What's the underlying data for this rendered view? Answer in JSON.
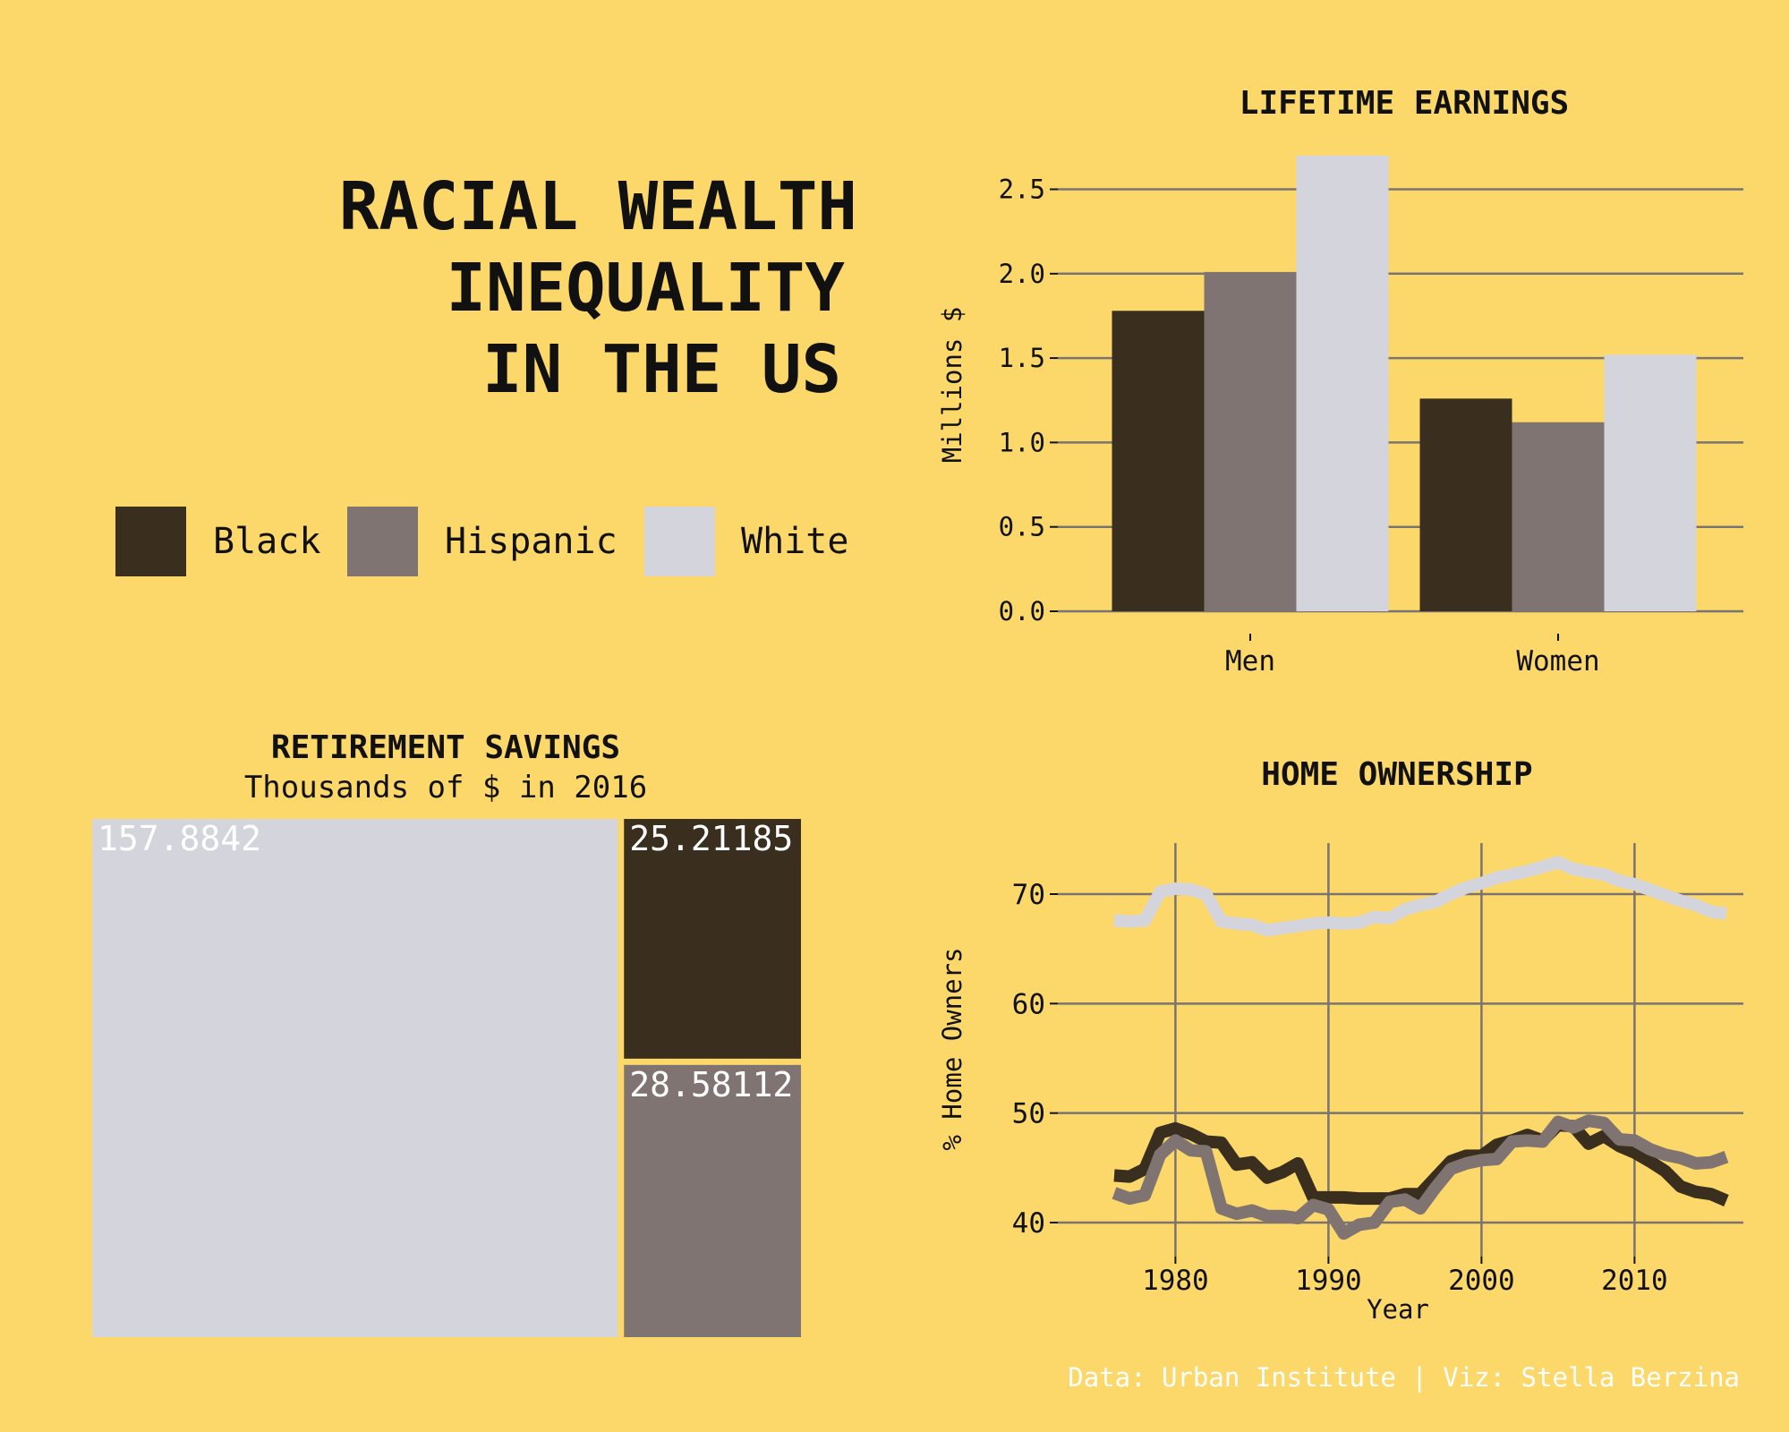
{
  "title_lines": [
    "RACIAL WEALTH",
    "INEQUALITY",
    "IN THE US"
  ],
  "colors": {
    "background": "#FCD86B",
    "Black": "#3A2F1F",
    "Hispanic": "#807472",
    "White": "#D4D4DC",
    "grid": "#7a7370"
  },
  "legend": [
    {
      "label": "Black",
      "color": "#3A2F1F"
    },
    {
      "label": "Hispanic",
      "color": "#807472"
    },
    {
      "label": "White",
      "color": "#D4D4DC"
    }
  ],
  "caption": "Data: Urban Institute | Viz: Stella Berzina",
  "chart_data": [
    {
      "type": "bar",
      "title": "LIFETIME EARNINGS",
      "ylabel": "Millions $",
      "xlabel": "",
      "categories": [
        "Men",
        "Women"
      ],
      "series": [
        {
          "name": "Black",
          "values": [
            1.78,
            1.26
          ]
        },
        {
          "name": "Hispanic",
          "values": [
            2.01,
            1.12
          ]
        },
        {
          "name": "White",
          "values": [
            2.7,
            1.52
          ]
        }
      ],
      "ylim": [
        0,
        2.72
      ],
      "yticks": [
        "0.0",
        "0.5",
        "1.0",
        "1.5",
        "2.0",
        "2.5"
      ],
      "ytick_values": [
        0,
        0.5,
        1.0,
        1.5,
        2.0,
        2.5
      ],
      "grid": true
    },
    {
      "type": "treemap",
      "title": "RETIREMENT SAVINGS",
      "subtitle": "Thousands of $ in 2016",
      "items": [
        {
          "name": "White",
          "value": 157.8842,
          "label": "157.8842"
        },
        {
          "name": "Black",
          "value": 25.21185,
          "label": "25.21185"
        },
        {
          "name": "Hispanic",
          "value": 28.58112,
          "label": "28.58112"
        }
      ]
    },
    {
      "type": "line",
      "title": "HOME OWNERSHIP",
      "ylabel": "% Home Owners",
      "xlabel": "Year",
      "xticks": [
        "1980",
        "1990",
        "2000",
        "2010"
      ],
      "xtick_values": [
        1980,
        1990,
        2000,
        2010
      ],
      "yticks": [
        "40",
        "50",
        "60",
        "70"
      ],
      "ytick_values": [
        40,
        50,
        60,
        70
      ],
      "xlim": [
        1976,
        2016
      ],
      "ylim": [
        38,
        74
      ],
      "x": [
        1976,
        1977,
        1978,
        1979,
        1980,
        1981,
        1982,
        1983,
        1984,
        1985,
        1986,
        1987,
        1988,
        1989,
        1990,
        1991,
        1992,
        1993,
        1994,
        1995,
        1996,
        1997,
        1998,
        1999,
        2000,
        2001,
        2002,
        2003,
        2004,
        2005,
        2006,
        2007,
        2008,
        2009,
        2010,
        2011,
        2012,
        2013,
        2014,
        2015,
        2016
      ],
      "series": [
        {
          "name": "White",
          "values": [
            67.6,
            67.5,
            67.6,
            70.2,
            70.5,
            70.4,
            70.0,
            67.5,
            67.3,
            67.2,
            66.7,
            66.9,
            67.1,
            67.3,
            67.4,
            67.3,
            67.4,
            67.9,
            67.8,
            68.6,
            69.0,
            69.3,
            70.0,
            70.6,
            71.0,
            71.5,
            71.8,
            72.1,
            72.5,
            72.9,
            72.3,
            72.0,
            71.8,
            71.2,
            70.9,
            70.4,
            69.9,
            69.4,
            69.0,
            68.4,
            68.2
          ]
        },
        {
          "name": "Black",
          "values": [
            44.3,
            44.2,
            44.9,
            48.2,
            48.6,
            48.1,
            47.4,
            47.3,
            45.3,
            45.5,
            44.1,
            44.6,
            45.4,
            42.3,
            42.3,
            42.3,
            42.2,
            42.2,
            42.2,
            42.6,
            42.6,
            44.1,
            45.6,
            46.1,
            46.1,
            47.1,
            47.5,
            48.0,
            47.5,
            48.9,
            48.8,
            47.2,
            47.9,
            47.0,
            46.4,
            45.6,
            44.7,
            43.3,
            42.8,
            42.6,
            42.0
          ]
        },
        {
          "name": "Hispanic",
          "values": [
            42.7,
            42.2,
            42.5,
            46.2,
            47.5,
            46.6,
            46.5,
            41.3,
            40.8,
            41.1,
            40.6,
            40.6,
            40.4,
            41.6,
            41.2,
            39.0,
            39.8,
            40.0,
            41.9,
            42.1,
            41.3,
            43.2,
            44.9,
            45.4,
            45.7,
            45.8,
            47.4,
            47.5,
            47.4,
            49.2,
            48.7,
            49.3,
            49.1,
            47.6,
            47.5,
            46.7,
            46.2,
            45.9,
            45.4,
            45.5,
            46.0
          ]
        }
      ],
      "grid": true
    }
  ]
}
